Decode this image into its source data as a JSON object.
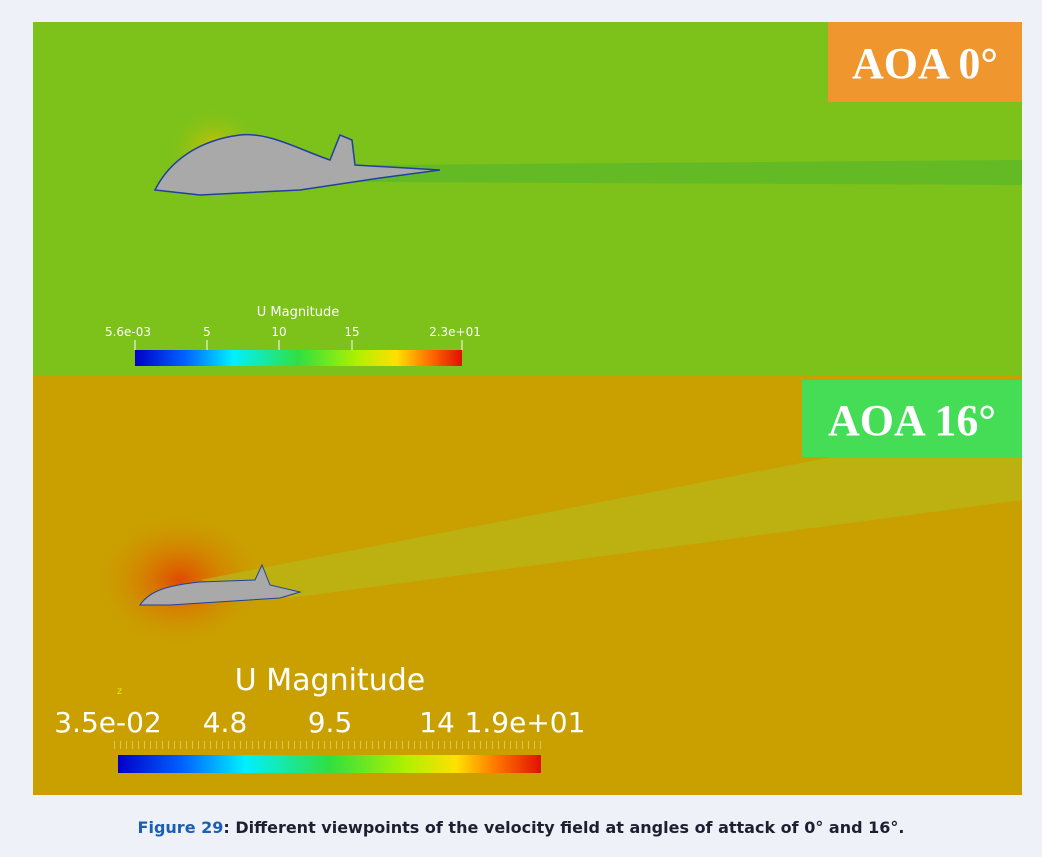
{
  "figure": {
    "panels": [
      {
        "label": "AOA 0°",
        "colorbar": {
          "title": "U Magnitude",
          "ticks": [
            "5.6e-03",
            "5",
            "10",
            "15",
            "2.3e+01"
          ]
        }
      },
      {
        "label": "AOA 16°",
        "colorbar": {
          "title": "U Magnitude",
          "ticks": [
            "3.5e-02",
            "4.8",
            "9.5",
            "14",
            "1.9e+01"
          ]
        },
        "axis_label": "z"
      }
    ],
    "caption": {
      "number": "Figure 29",
      "text": ": Different viewpoints of the velocity field at angles of attack of 0° and 16°."
    }
  }
}
